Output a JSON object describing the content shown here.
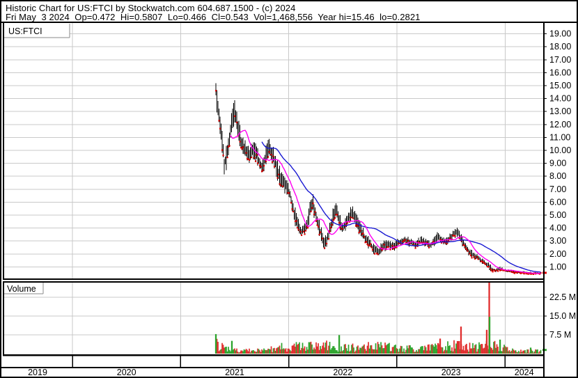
{
  "header": {
    "line1": "Historic Chart for US:FTCI by Stockwatch.com 604.687.1500 - (c) 2024",
    "line2": "Fri May  3 2024  Op=0.472  Hi=0.5807  Lo=0.466  Cl=0.543  Vol=1,468,556  Year hi=15.46  lo=0.2821"
  },
  "price_panel": {
    "symbol_label": "US:FTCI"
  },
  "volume_panel": {
    "label": "Volume"
  },
  "colors": {
    "up_volume": "#2ca42c",
    "down_volume": "#e02c2c",
    "candle": "#000000",
    "close_dot": "#e00000",
    "ma_fast": "#ff00f0",
    "ma_slow": "#1a1ad2",
    "grid": "#c9c9c9",
    "border": "#000000",
    "label_box_line": "#8a8a8a"
  },
  "chart_data": {
    "type": "candlestick",
    "title": "Historic Chart for US:FTCI",
    "symbol": "US:FTCI",
    "x_axis": {
      "year_labels": [
        "2019",
        "2020",
        "2021",
        "2022",
        "2023",
        "2024"
      ],
      "range_years": [
        2019.36,
        2024.36
      ]
    },
    "price_axis": {
      "min": 1,
      "max": 19,
      "step": 1,
      "decimals": 2
    },
    "volume_axis": {
      "ticks_millions": [
        7.5,
        15.0,
        22.5
      ],
      "unit": "M"
    },
    "last_quote": {
      "date": "Fri May 3 2024",
      "open": 0.472,
      "high": 0.5807,
      "low": 0.466,
      "close": 0.543,
      "volume": 1468556,
      "year_high": 15.46,
      "year_low": 0.2821
    },
    "moving_averages": {
      "fast_window": 15,
      "slow_window": 45
    },
    "price_anchors": [
      [
        2021.326,
        15.5,
        13.6
      ],
      [
        2021.345,
        14.3,
        11.9
      ],
      [
        2021.365,
        13.2,
        11.0
      ],
      [
        2021.384,
        11.6,
        9.6
      ],
      [
        2021.403,
        9.9,
        8.05
      ],
      [
        2021.429,
        10.6,
        8.6
      ],
      [
        2021.455,
        12.2,
        10.3
      ],
      [
        2021.481,
        13.5,
        11.4
      ],
      [
        2021.5,
        14.05,
        12.0
      ],
      [
        2021.526,
        12.8,
        10.9
      ],
      [
        2021.558,
        11.6,
        9.9
      ],
      [
        2021.596,
        10.8,
        9.3
      ],
      [
        2021.635,
        10.3,
        8.9
      ],
      [
        2021.674,
        10.9,
        9.2
      ],
      [
        2021.712,
        10.2,
        8.7
      ],
      [
        2021.751,
        9.3,
        7.9
      ],
      [
        2021.783,
        10.2,
        8.5
      ],
      [
        2021.815,
        11.3,
        9.4
      ],
      [
        2021.854,
        10.4,
        8.8
      ],
      [
        2021.893,
        9.4,
        7.6
      ],
      [
        2021.931,
        8.4,
        6.9
      ],
      [
        2021.97,
        8.0,
        6.6
      ],
      [
        2022.008,
        7.3,
        6.2
      ],
      [
        2022.041,
        6.3,
        4.6
      ],
      [
        2022.079,
        4.9,
        3.6
      ],
      [
        2022.118,
        4.2,
        3.3
      ],
      [
        2022.157,
        4.6,
        3.5
      ],
      [
        2022.195,
        6.2,
        4.4
      ],
      [
        2022.221,
        6.9,
        5.2
      ],
      [
        2022.253,
        5.6,
        4.1
      ],
      [
        2022.292,
        4.3,
        3.1
      ],
      [
        2022.33,
        3.4,
        2.25
      ],
      [
        2022.369,
        4.1,
        2.8
      ],
      [
        2022.408,
        5.6,
        4.0
      ],
      [
        2022.433,
        6.3,
        4.9
      ],
      [
        2022.466,
        5.2,
        3.9
      ],
      [
        2022.504,
        4.4,
        3.5
      ],
      [
        2022.543,
        5.2,
        4.0
      ],
      [
        2022.581,
        5.8,
        4.5
      ],
      [
        2022.62,
        5.3,
        4.1
      ],
      [
        2022.659,
        4.6,
        3.3
      ],
      [
        2022.697,
        3.9,
        2.8
      ],
      [
        2022.736,
        3.4,
        2.4
      ],
      [
        2022.781,
        2.9,
        2.0
      ],
      [
        2022.826,
        2.6,
        1.85
      ],
      [
        2022.871,
        3.0,
        2.1
      ],
      [
        2022.916,
        3.2,
        2.3
      ],
      [
        2022.968,
        3.0,
        2.2
      ],
      [
        2023.019,
        3.3,
        2.5
      ],
      [
        2023.071,
        3.5,
        2.7
      ],
      [
        2023.122,
        3.3,
        2.5
      ],
      [
        2023.174,
        3.1,
        2.4
      ],
      [
        2023.225,
        3.4,
        2.6
      ],
      [
        2023.27,
        3.2,
        2.5
      ],
      [
        2023.315,
        3.0,
        2.3
      ],
      [
        2023.354,
        3.5,
        2.7
      ],
      [
        2023.38,
        3.85,
        3.0
      ],
      [
        2023.412,
        3.4,
        2.8
      ],
      [
        2023.451,
        3.2,
        2.6
      ],
      [
        2023.489,
        3.6,
        2.9
      ],
      [
        2023.528,
        3.9,
        3.2
      ],
      [
        2023.56,
        4.15,
        3.3
      ],
      [
        2023.592,
        3.7,
        2.7
      ],
      [
        2023.631,
        3.0,
        2.2
      ],
      [
        2023.669,
        2.5,
        1.8
      ],
      [
        2023.708,
        2.2,
        1.6
      ],
      [
        2023.753,
        1.9,
        1.4
      ],
      [
        2023.798,
        1.6,
        1.15
      ],
      [
        2023.837,
        1.4,
        1.0
      ],
      [
        2023.856,
        1.35,
        0.57
      ],
      [
        2023.882,
        0.95,
        0.62
      ],
      [
        2023.914,
        0.85,
        0.6
      ],
      [
        2023.953,
        1.05,
        0.7
      ],
      [
        2023.991,
        0.9,
        0.62
      ],
      [
        2024.036,
        0.8,
        0.55
      ],
      [
        2024.081,
        0.75,
        0.5
      ],
      [
        2024.133,
        0.7,
        0.47
      ],
      [
        2024.184,
        0.66,
        0.44
      ],
      [
        2024.236,
        0.62,
        0.42
      ],
      [
        2024.287,
        0.58,
        0.4
      ],
      [
        2024.332,
        0.5807,
        0.43
      ]
    ],
    "volume_anchors_millions": [
      [
        2021.326,
        3.4
      ],
      [
        2021.4,
        2.0
      ],
      [
        2021.5,
        1.4
      ],
      [
        2021.6,
        1.1
      ],
      [
        2021.7,
        1.3
      ],
      [
        2021.8,
        1.8
      ],
      [
        2021.9,
        2.2
      ],
      [
        2022.0,
        2.6
      ],
      [
        2022.08,
        2.9
      ],
      [
        2022.2,
        2.6
      ],
      [
        2022.33,
        2.9
      ],
      [
        2022.45,
        2.4
      ],
      [
        2022.6,
        2.3
      ],
      [
        2022.72,
        2.5
      ],
      [
        2022.83,
        2.7
      ],
      [
        2022.95,
        2.4
      ],
      [
        2023.05,
        1.8
      ],
      [
        2023.17,
        1.9
      ],
      [
        2023.3,
        2.2
      ],
      [
        2023.42,
        2.6
      ],
      [
        2023.55,
        3.0
      ],
      [
        2023.63,
        2.6
      ],
      [
        2023.72,
        2.4
      ],
      [
        2023.8,
        2.8
      ],
      [
        2023.88,
        3.2
      ],
      [
        2023.96,
        2.4
      ],
      [
        2024.05,
        1.4
      ],
      [
        2024.13,
        1.0
      ],
      [
        2024.2,
        0.9
      ],
      [
        2024.28,
        1.1
      ],
      [
        2024.332,
        1.5
      ]
    ],
    "volume_spikes_millions": [
      [
        2021.326,
        7.8,
        "g"
      ],
      [
        2021.474,
        5.1,
        "g"
      ],
      [
        2022.466,
        7.4,
        "g"
      ],
      [
        2023.38,
        4.2,
        "r"
      ],
      [
        2023.399,
        6.0,
        "r"
      ],
      [
        2023.56,
        5.0,
        "r"
      ],
      [
        2023.592,
        10.8,
        "r"
      ],
      [
        2023.83,
        9.5,
        "r"
      ],
      [
        2023.853,
        29.5,
        "r"
      ],
      [
        2023.856,
        14.7,
        "g"
      ],
      [
        2023.953,
        5.6,
        "g"
      ],
      [
        2024.236,
        2.4,
        "g"
      ]
    ]
  }
}
